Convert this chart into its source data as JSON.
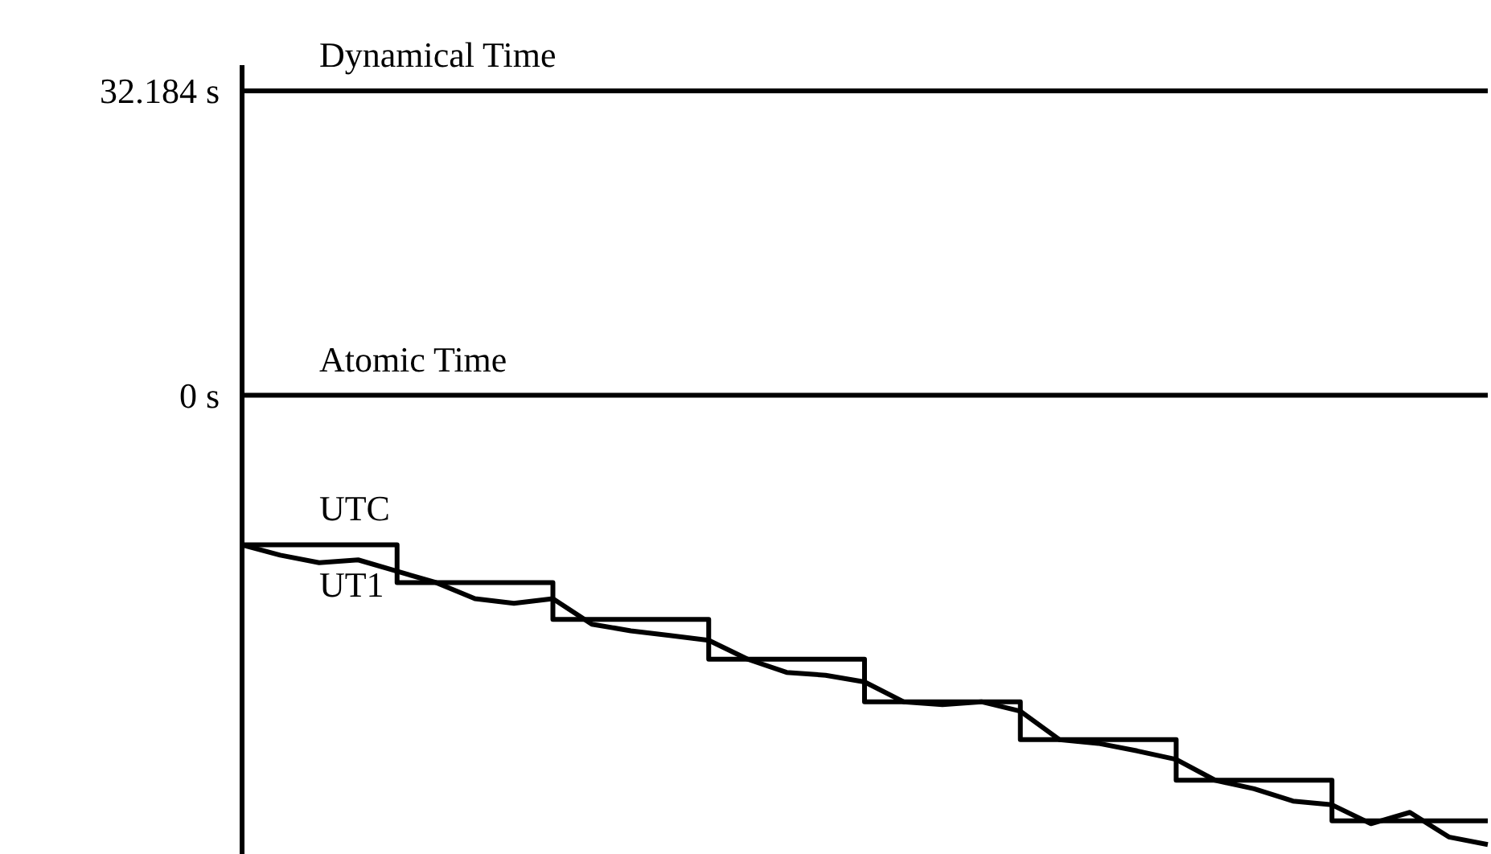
{
  "chart_data": {
    "type": "line",
    "categories": [
      null,
      null,
      null,
      null,
      null,
      null,
      null,
      null,
      null,
      null,
      null,
      null,
      null,
      null,
      null,
      null,
      null,
      null,
      null,
      null,
      null,
      null,
      null,
      null,
      null,
      null,
      null,
      null,
      null,
      null,
      null,
      null,
      null
    ],
    "series": [
      {
        "name": "Dynamical Time",
        "color": "#000000",
        "values": [
          32.184,
          32.184,
          32.184,
          32.184,
          32.184,
          32.184,
          32.184,
          32.184,
          32.184,
          32.184,
          32.184,
          32.184,
          32.184,
          32.184,
          32.184,
          32.184,
          32.184,
          32.184,
          32.184,
          32.184,
          32.184,
          32.184,
          32.184,
          32.184,
          32.184,
          32.184,
          32.184,
          32.184,
          32.184,
          32.184,
          32.184,
          32.184,
          32.184
        ]
      },
      {
        "name": "Atomic Time",
        "color": "#000000",
        "values": [
          0,
          0,
          0,
          0,
          0,
          0,
          0,
          0,
          0,
          0,
          0,
          0,
          0,
          0,
          0,
          0,
          0,
          0,
          0,
          0,
          0,
          0,
          0,
          0,
          0,
          0,
          0,
          0,
          0,
          0,
          0,
          0,
          0
        ]
      },
      {
        "name": "UTC",
        "type": "step",
        "color": "#000000",
        "values": [
          -15.8,
          -15.8,
          -15.8,
          -15.8,
          -19.8,
          -19.8,
          -19.8,
          -19.8,
          -23.7,
          -23.7,
          -23.7,
          -23.7,
          -27.9,
          -27.9,
          -27.9,
          -27.9,
          -32.4,
          -32.4,
          -32.4,
          -32.4,
          -36.4,
          -36.4,
          -36.4,
          -36.4,
          -40.7,
          -40.7,
          -40.7,
          -40.7,
          -45.0,
          -45.0,
          -45.0,
          -45.0,
          -45.0
        ]
      },
      {
        "name": "UT1",
        "color": "#000000",
        "values": [
          -15.8,
          -16.9,
          -17.7,
          -17.4,
          -18.6,
          -19.8,
          -21.5,
          -22.0,
          -21.5,
          -24.2,
          -24.9,
          -25.4,
          -25.9,
          -27.9,
          -29.3,
          -29.6,
          -30.3,
          -32.4,
          -32.7,
          -32.4,
          -33.4,
          -36.4,
          -36.8,
          -37.6,
          -38.5,
          -40.7,
          -41.6,
          -42.9,
          -43.3,
          -45.3,
          -44.1,
          -46.7,
          -47.5
        ]
      }
    ],
    "ylim": [
      -48.5,
      35
    ],
    "yticks": [
      {
        "value": 32.184,
        "label": "32.184 s"
      },
      {
        "value": 0,
        "label": "0 s"
      }
    ],
    "tick_labels": "y"
  }
}
